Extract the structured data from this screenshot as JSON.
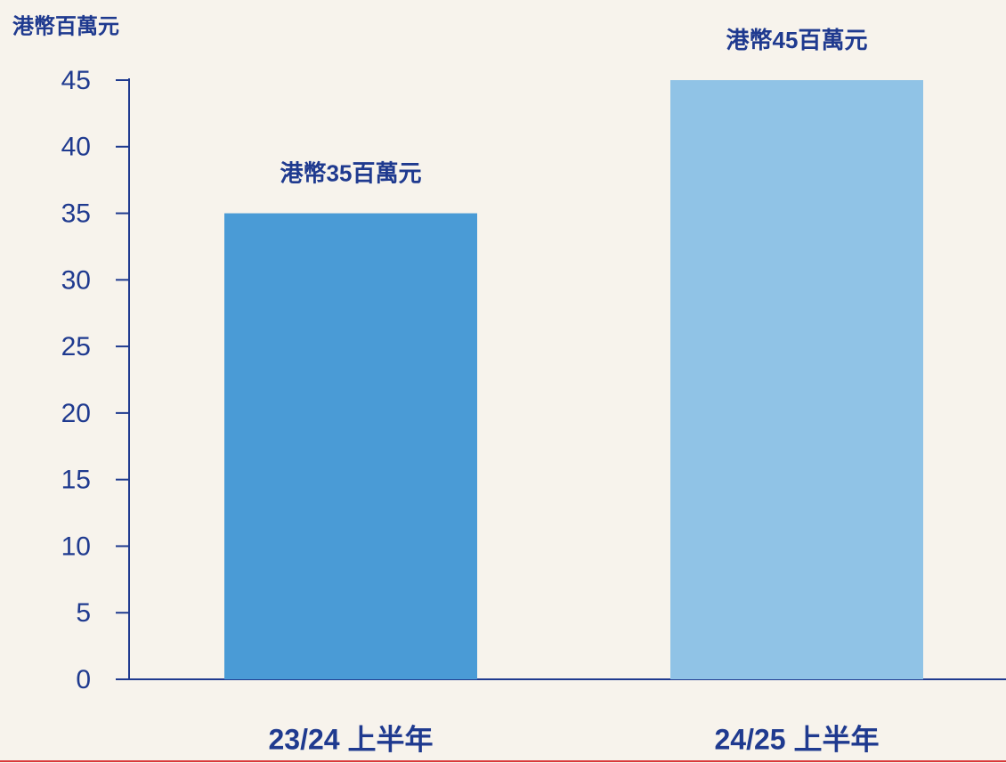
{
  "chart_data": {
    "type": "bar",
    "y_label": "港幣百萬元",
    "categories": [
      "23/24 上半年",
      "24/25 上半年"
    ],
    "values": [
      35,
      45
    ],
    "value_labels": [
      "港幣35百萬元",
      "港幣45百萬元"
    ],
    "colors": [
      "#4a9bd6",
      "#90c3e6"
    ],
    "ylim": [
      0,
      45
    ],
    "yticks": [
      0,
      5,
      10,
      15,
      20,
      25,
      30,
      35,
      40,
      45
    ],
    "grid": false
  }
}
